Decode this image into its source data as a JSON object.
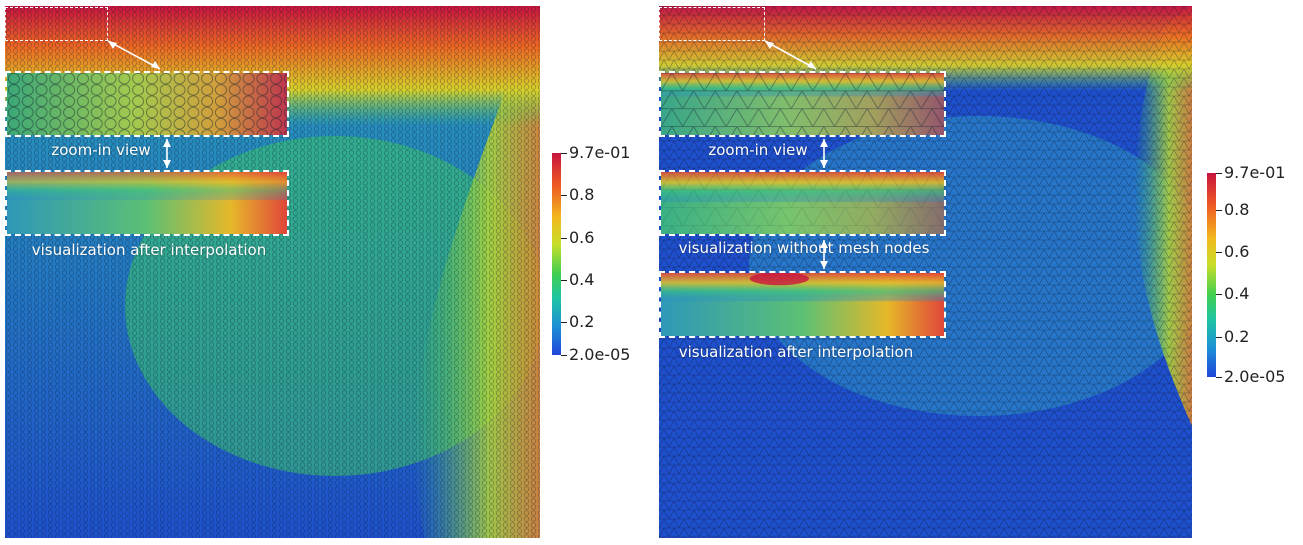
{
  "left_panel": {
    "zoom_caption": "zoom-in view",
    "interp_caption": "visualization after interpolation"
  },
  "right_panel": {
    "zoom_caption": "zoom-in view",
    "no_nodes_caption": "visualization without mesh nodes",
    "interp_caption": "visualization after interpolation"
  },
  "colorbar": {
    "max_label": "9.7e-01",
    "min_label": "2.0e-05",
    "tick_labels": [
      "0.8",
      "0.6",
      "0.4",
      "0.2"
    ],
    "colors": [
      "#1f45d8",
      "#1d8fd6",
      "#1fc4a4",
      "#3fcf52",
      "#c8de28",
      "#f2b81e",
      "#ee5a24",
      "#c8143e"
    ]
  },
  "colors": {
    "low": "#1f45d8",
    "mid": "#3fcf52",
    "high": "#c8143e",
    "overlay": "#ffffff"
  }
}
